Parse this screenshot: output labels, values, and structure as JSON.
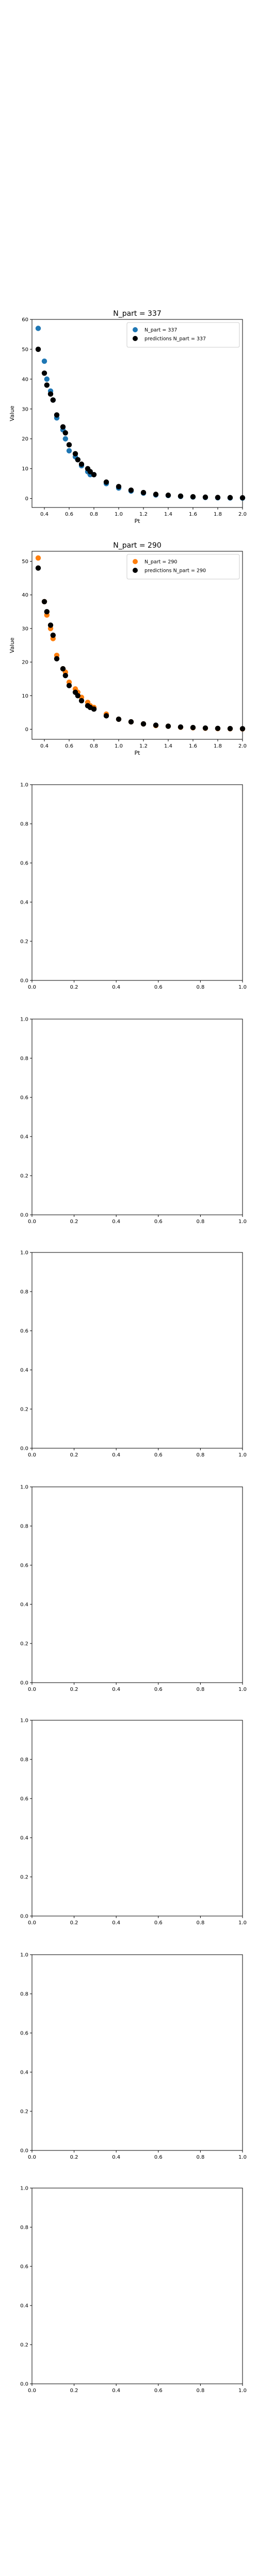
{
  "chart_data": [
    {
      "type": "scatter",
      "title": "N_part = 337",
      "xlabel": "Pt",
      "ylabel": "Value",
      "xlim": [
        0.3,
        2.0
      ],
      "ylim": [
        -3,
        60
      ],
      "xticks": [
        "0.4",
        "0.6",
        "0.8",
        "1.0",
        "1.2",
        "1.4",
        "1.6",
        "1.8",
        "2.0"
      ],
      "yticks": [
        "0",
        "10",
        "20",
        "30",
        "40",
        "50",
        "60"
      ],
      "legend_position": "top-right",
      "series": [
        {
          "name": "N_part = 337",
          "color": "#1f77b4",
          "x": [
            0.35,
            0.4,
            0.42,
            0.45,
            0.47,
            0.5,
            0.55,
            0.57,
            0.6,
            0.65,
            0.67,
            0.7,
            0.75,
            0.77,
            0.8,
            0.9,
            1.0,
            1.1,
            1.2,
            1.3,
            1.4,
            1.5,
            1.6,
            1.7,
            1.8,
            1.9,
            2.0
          ],
          "y": [
            57,
            46,
            40,
            36,
            33,
            27,
            23,
            20,
            16,
            14,
            13,
            11,
            9,
            8,
            8,
            5,
            3.5,
            2.5,
            1.8,
            1.2,
            1.0,
            0.7,
            0.5,
            0.35,
            0.25,
            0.2,
            0.15
          ]
        },
        {
          "name": "predictions N_part = 337",
          "color": "#000000",
          "x": [
            0.35,
            0.4,
            0.42,
            0.45,
            0.47,
            0.5,
            0.55,
            0.57,
            0.6,
            0.65,
            0.67,
            0.7,
            0.75,
            0.77,
            0.8,
            0.9,
            1.0,
            1.1,
            1.2,
            1.3,
            1.4,
            1.5,
            1.6,
            1.7,
            1.8,
            1.9,
            2.0
          ],
          "y": [
            50,
            42,
            38,
            35,
            33,
            28,
            24,
            22,
            18,
            15,
            13,
            11.5,
            10,
            9,
            8,
            5.5,
            4,
            2.8,
            2,
            1.4,
            1.1,
            0.8,
            0.6,
            0.45,
            0.35,
            0.3,
            0.25
          ]
        }
      ]
    },
    {
      "type": "scatter",
      "title": "N_part = 290",
      "xlabel": "Pt",
      "ylabel": "Value",
      "xlim": [
        0.3,
        2.0
      ],
      "ylim": [
        -3,
        53
      ],
      "xticks": [
        "0.4",
        "0.6",
        "0.8",
        "1.0",
        "1.2",
        "1.4",
        "1.6",
        "1.8",
        "2.0"
      ],
      "yticks": [
        "0",
        "10",
        "20",
        "30",
        "40",
        "50"
      ],
      "legend_position": "top-right",
      "series": [
        {
          "name": "N_part = 290",
          "color": "#ff7f0e",
          "x": [
            0.35,
            0.4,
            0.42,
            0.45,
            0.47,
            0.5,
            0.55,
            0.57,
            0.6,
            0.65,
            0.67,
            0.7,
            0.75,
            0.77,
            0.8,
            0.9,
            1.0,
            1.1,
            1.2,
            1.3,
            1.4,
            1.5,
            1.6,
            1.7,
            1.8,
            1.9,
            2.0
          ],
          "y": [
            51,
            38,
            34,
            30,
            27,
            22,
            18,
            17,
            14,
            12,
            11,
            9.5,
            8,
            7,
            6.5,
            4.5,
            3,
            2.2,
            1.6,
            1.1,
            0.9,
            0.6,
            0.45,
            0.3,
            0.2,
            0.15,
            0.1
          ]
        },
        {
          "name": "predictions N_part = 290",
          "color": "#000000",
          "x": [
            0.35,
            0.4,
            0.42,
            0.45,
            0.47,
            0.5,
            0.55,
            0.57,
            0.6,
            0.65,
            0.67,
            0.7,
            0.75,
            0.77,
            0.8,
            0.9,
            1.0,
            1.1,
            1.2,
            1.3,
            1.4,
            1.5,
            1.6,
            1.7,
            1.8,
            1.9,
            2.0
          ],
          "y": [
            48,
            38,
            35,
            31,
            28,
            21,
            18,
            16,
            13,
            11,
            10,
            8.5,
            7,
            6.5,
            6,
            4,
            3,
            2.2,
            1.6,
            1.2,
            0.9,
            0.65,
            0.5,
            0.35,
            0.25,
            0.2,
            0.15
          ]
        }
      ]
    },
    {
      "type": "scatter",
      "xlim": [
        0.0,
        1.0
      ],
      "ylim": [
        0.0,
        1.0
      ],
      "xticks": [
        "0.0",
        "0.2",
        "0.4",
        "0.6",
        "0.8",
        "1.0"
      ],
      "yticks": [
        "0.0",
        "0.2",
        "0.4",
        "0.6",
        "0.8",
        "1.0"
      ],
      "series": []
    },
    {
      "type": "scatter",
      "xlim": [
        0.0,
        1.0
      ],
      "ylim": [
        0.0,
        1.0
      ],
      "xticks": [
        "0.0",
        "0.2",
        "0.4",
        "0.6",
        "0.8",
        "1.0"
      ],
      "yticks": [
        "0.0",
        "0.2",
        "0.4",
        "0.6",
        "0.8",
        "1.0"
      ],
      "series": []
    },
    {
      "type": "scatter",
      "xlim": [
        0.0,
        1.0
      ],
      "ylim": [
        0.0,
        1.0
      ],
      "xticks": [
        "0.0",
        "0.2",
        "0.4",
        "0.6",
        "0.8",
        "1.0"
      ],
      "yticks": [
        "0.0",
        "0.2",
        "0.4",
        "0.6",
        "0.8",
        "1.0"
      ],
      "series": []
    },
    {
      "type": "scatter",
      "xlim": [
        0.0,
        1.0
      ],
      "ylim": [
        0.0,
        1.0
      ],
      "xticks": [
        "0.0",
        "0.2",
        "0.4",
        "0.6",
        "0.8",
        "1.0"
      ],
      "yticks": [
        "0.0",
        "0.2",
        "0.4",
        "0.6",
        "0.8",
        "1.0"
      ],
      "series": []
    },
    {
      "type": "scatter",
      "xlim": [
        0.0,
        1.0
      ],
      "ylim": [
        0.0,
        1.0
      ],
      "xticks": [
        "0.0",
        "0.2",
        "0.4",
        "0.6",
        "0.8",
        "1.0"
      ],
      "yticks": [
        "0.0",
        "0.2",
        "0.4",
        "0.6",
        "0.8",
        "1.0"
      ],
      "series": []
    },
    {
      "type": "scatter",
      "xlim": [
        0.0,
        1.0
      ],
      "ylim": [
        0.0,
        1.0
      ],
      "xticks": [
        "0.0",
        "0.2",
        "0.4",
        "0.6",
        "0.8",
        "1.0"
      ],
      "yticks": [
        "0.0",
        "0.2",
        "0.4",
        "0.6",
        "0.8",
        "1.0"
      ],
      "series": []
    },
    {
      "type": "scatter",
      "xlim": [
        0.0,
        1.0
      ],
      "ylim": [
        0.0,
        1.0
      ],
      "xticks": [
        "0.0",
        "0.2",
        "0.4",
        "0.6",
        "0.8",
        "1.0"
      ],
      "yticks": [
        "0.0",
        "0.2",
        "0.4",
        "0.6",
        "0.8",
        "1.0"
      ],
      "series": []
    }
  ]
}
